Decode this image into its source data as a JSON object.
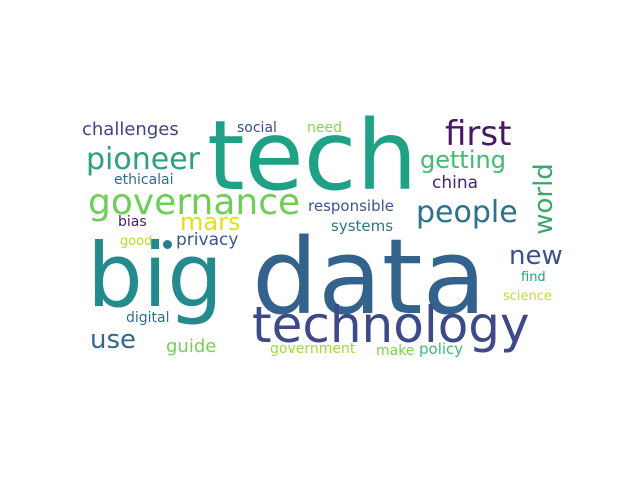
{
  "words": [
    {
      "text": "data",
      "color": "#33638d"
    },
    {
      "text": "tech",
      "color": "#1fa187"
    },
    {
      "text": "big",
      "color": "#238a8d"
    },
    {
      "text": "technology",
      "color": "#3e4989"
    },
    {
      "text": "governance",
      "color": "#6ece58"
    },
    {
      "text": "first",
      "color": "#481668"
    },
    {
      "text": "pioneer",
      "color": "#2ea07e"
    },
    {
      "text": "people",
      "color": "#2c718e"
    },
    {
      "text": "getting",
      "color": "#3fbc73"
    },
    {
      "text": "world",
      "color": "#3aa86d"
    },
    {
      "text": "mars",
      "color": "#dde318"
    },
    {
      "text": "new",
      "color": "#3b528b"
    },
    {
      "text": "use",
      "color": "#31688e"
    },
    {
      "text": "challenges",
      "color": "#404387"
    },
    {
      "text": "privacy",
      "color": "#38588c"
    },
    {
      "text": "china",
      "color": "#482475"
    },
    {
      "text": "guide",
      "color": "#75d054"
    },
    {
      "text": "responsible",
      "color": "#3a548c"
    },
    {
      "text": "systems",
      "color": "#2b758e"
    },
    {
      "text": "ethicalai",
      "color": "#2e6e8e"
    },
    {
      "text": "social",
      "color": "#3c4f8a"
    },
    {
      "text": "need",
      "color": "#8bd646"
    },
    {
      "text": "digital",
      "color": "#2e6f8e"
    },
    {
      "text": "government",
      "color": "#a0da39"
    },
    {
      "text": "make",
      "color": "#7ad151"
    },
    {
      "text": "policy",
      "color": "#3dbc74"
    },
    {
      "text": "bias",
      "color": "#481c6e"
    },
    {
      "text": "good",
      "color": "#b8de29"
    },
    {
      "text": "find",
      "color": "#20a386"
    },
    {
      "text": "science",
      "color": "#c2df23"
    }
  ],
  "dot_color": "#2a7b8e"
}
